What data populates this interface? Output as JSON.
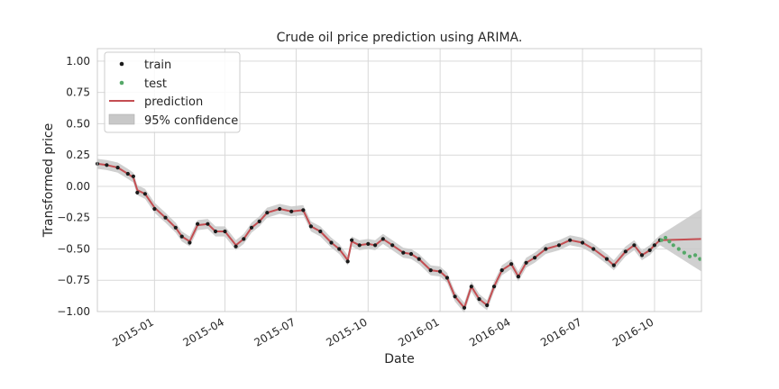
{
  "chart_data": {
    "type": "line",
    "title": "Crude oil price prediction using ARIMA.",
    "xlabel": "Date",
    "ylabel": "Transformed price",
    "ylim": [
      -1.0,
      1.1
    ],
    "xlim": [
      "2014-10-20",
      "2016-11-30"
    ],
    "yticks": [
      {
        "value": 1.0,
        "label": "1.00"
      },
      {
        "value": 0.75,
        "label": "0.75"
      },
      {
        "value": 0.5,
        "label": "0.50"
      },
      {
        "value": 0.25,
        "label": "0.25"
      },
      {
        "value": 0.0,
        "label": "0.00"
      },
      {
        "value": -0.25,
        "label": "−0.25"
      },
      {
        "value": -0.5,
        "label": "−0.50"
      },
      {
        "value": -0.75,
        "label": "−0.75"
      },
      {
        "value": -1.0,
        "label": "−1.00"
      }
    ],
    "xticks": [
      {
        "value": "2015-01-01",
        "label": "2015-01"
      },
      {
        "value": "2015-04-01",
        "label": "2015-04"
      },
      {
        "value": "2015-07-01",
        "label": "2015-07"
      },
      {
        "value": "2015-10-01",
        "label": "2015-10"
      },
      {
        "value": "2016-01-01",
        "label": "2016-01"
      },
      {
        "value": "2016-04-01",
        "label": "2016-04"
      },
      {
        "value": "2016-07-01",
        "label": "2016-07"
      },
      {
        "value": "2016-10-01",
        "label": "2016-10"
      }
    ],
    "grid": true,
    "legend_position": "top-left",
    "confidence_halfwidth": 0.04,
    "series": [
      {
        "name": "train",
        "kind": "scatter",
        "color": "#1a1a1a",
        "points": [
          [
            "2014-10-20",
            0.18
          ],
          [
            "2014-11-01",
            0.17
          ],
          [
            "2014-11-15",
            0.15
          ],
          [
            "2014-11-28",
            0.1
          ],
          [
            "2014-12-05",
            0.08
          ],
          [
            "2014-12-10",
            -0.05
          ],
          [
            "2014-12-20",
            -0.06
          ],
          [
            "2015-01-01",
            -0.18
          ],
          [
            "2015-01-15",
            -0.25
          ],
          [
            "2015-01-28",
            -0.33
          ],
          [
            "2015-02-05",
            -0.4
          ],
          [
            "2015-02-15",
            -0.45
          ],
          [
            "2015-02-25",
            -0.3
          ],
          [
            "2015-03-10",
            -0.3
          ],
          [
            "2015-03-20",
            -0.36
          ],
          [
            "2015-04-01",
            -0.36
          ],
          [
            "2015-04-15",
            -0.48
          ],
          [
            "2015-04-25",
            -0.42
          ],
          [
            "2015-05-05",
            -0.33
          ],
          [
            "2015-05-15",
            -0.28
          ],
          [
            "2015-05-25",
            -0.21
          ],
          [
            "2015-06-10",
            -0.18
          ],
          [
            "2015-06-25",
            -0.2
          ],
          [
            "2015-07-10",
            -0.19
          ],
          [
            "2015-07-20",
            -0.32
          ],
          [
            "2015-08-01",
            -0.36
          ],
          [
            "2015-08-15",
            -0.45
          ],
          [
            "2015-08-25",
            -0.5
          ],
          [
            "2015-09-05",
            -0.6
          ],
          [
            "2015-09-10",
            -0.43
          ],
          [
            "2015-09-20",
            -0.47
          ],
          [
            "2015-10-01",
            -0.46
          ],
          [
            "2015-10-10",
            -0.47
          ],
          [
            "2015-10-20",
            -0.42
          ],
          [
            "2015-11-01",
            -0.47
          ],
          [
            "2015-11-15",
            -0.53
          ],
          [
            "2015-11-25",
            -0.54
          ],
          [
            "2015-12-05",
            -0.58
          ],
          [
            "2015-12-20",
            -0.67
          ],
          [
            "2016-01-01",
            -0.68
          ],
          [
            "2016-01-10",
            -0.73
          ],
          [
            "2016-01-20",
            -0.88
          ],
          [
            "2016-02-01",
            -0.97
          ],
          [
            "2016-02-10",
            -0.8
          ],
          [
            "2016-02-20",
            -0.9
          ],
          [
            "2016-03-01",
            -0.95
          ],
          [
            "2016-03-10",
            -0.8
          ],
          [
            "2016-03-20",
            -0.67
          ],
          [
            "2016-04-01",
            -0.62
          ],
          [
            "2016-04-10",
            -0.72
          ],
          [
            "2016-04-20",
            -0.61
          ],
          [
            "2016-05-01",
            -0.57
          ],
          [
            "2016-05-15",
            -0.5
          ],
          [
            "2016-06-01",
            -0.47
          ],
          [
            "2016-06-15",
            -0.43
          ],
          [
            "2016-07-01",
            -0.45
          ],
          [
            "2016-07-15",
            -0.5
          ],
          [
            "2016-08-01",
            -0.58
          ],
          [
            "2016-08-10",
            -0.63
          ],
          [
            "2016-08-25",
            -0.52
          ],
          [
            "2016-09-05",
            -0.47
          ],
          [
            "2016-09-15",
            -0.55
          ],
          [
            "2016-09-25",
            -0.51
          ],
          [
            "2016-10-01",
            -0.47
          ],
          [
            "2016-10-08",
            -0.43
          ]
        ]
      },
      {
        "name": "test",
        "kind": "scatter",
        "color": "#55a868",
        "points": [
          [
            "2016-10-10",
            -0.43
          ],
          [
            "2016-10-15",
            -0.41
          ],
          [
            "2016-10-20",
            -0.44
          ],
          [
            "2016-10-25",
            -0.47
          ],
          [
            "2016-11-01",
            -0.5
          ],
          [
            "2016-11-08",
            -0.53
          ],
          [
            "2016-11-15",
            -0.56
          ],
          [
            "2016-11-22",
            -0.55
          ],
          [
            "2016-11-28",
            -0.58
          ]
        ]
      },
      {
        "name": "prediction",
        "kind": "line",
        "color": "#c44e52",
        "points": [
          [
            "2014-10-20",
            0.18
          ],
          [
            "2014-11-01",
            0.17
          ],
          [
            "2014-11-15",
            0.15
          ],
          [
            "2014-11-28",
            0.1
          ],
          [
            "2014-12-05",
            0.07
          ],
          [
            "2014-12-10",
            -0.03
          ],
          [
            "2014-12-20",
            -0.06
          ],
          [
            "2015-01-01",
            -0.17
          ],
          [
            "2015-01-15",
            -0.25
          ],
          [
            "2015-01-28",
            -0.33
          ],
          [
            "2015-02-05",
            -0.4
          ],
          [
            "2015-02-15",
            -0.44
          ],
          [
            "2015-02-25",
            -0.31
          ],
          [
            "2015-03-10",
            -0.3
          ],
          [
            "2015-03-20",
            -0.36
          ],
          [
            "2015-04-01",
            -0.36
          ],
          [
            "2015-04-15",
            -0.47
          ],
          [
            "2015-04-25",
            -0.42
          ],
          [
            "2015-05-05",
            -0.33
          ],
          [
            "2015-05-15",
            -0.28
          ],
          [
            "2015-05-25",
            -0.21
          ],
          [
            "2015-06-10",
            -0.18
          ],
          [
            "2015-06-25",
            -0.2
          ],
          [
            "2015-07-10",
            -0.19
          ],
          [
            "2015-07-20",
            -0.32
          ],
          [
            "2015-08-01",
            -0.36
          ],
          [
            "2015-08-15",
            -0.45
          ],
          [
            "2015-08-25",
            -0.5
          ],
          [
            "2015-09-05",
            -0.59
          ],
          [
            "2015-09-10",
            -0.44
          ],
          [
            "2015-09-20",
            -0.47
          ],
          [
            "2015-10-01",
            -0.46
          ],
          [
            "2015-10-10",
            -0.47
          ],
          [
            "2015-10-20",
            -0.42
          ],
          [
            "2015-11-01",
            -0.47
          ],
          [
            "2015-11-15",
            -0.53
          ],
          [
            "2015-11-25",
            -0.54
          ],
          [
            "2015-12-05",
            -0.58
          ],
          [
            "2015-12-20",
            -0.67
          ],
          [
            "2016-01-01",
            -0.68
          ],
          [
            "2016-01-10",
            -0.73
          ],
          [
            "2016-01-20",
            -0.88
          ],
          [
            "2016-02-01",
            -0.97
          ],
          [
            "2016-02-10",
            -0.8
          ],
          [
            "2016-02-20",
            -0.9
          ],
          [
            "2016-03-01",
            -0.95
          ],
          [
            "2016-03-10",
            -0.8
          ],
          [
            "2016-03-20",
            -0.67
          ],
          [
            "2016-04-01",
            -0.62
          ],
          [
            "2016-04-10",
            -0.72
          ],
          [
            "2016-04-20",
            -0.61
          ],
          [
            "2016-05-01",
            -0.57
          ],
          [
            "2016-05-15",
            -0.5
          ],
          [
            "2016-06-01",
            -0.47
          ],
          [
            "2016-06-15",
            -0.43
          ],
          [
            "2016-07-01",
            -0.45
          ],
          [
            "2016-07-15",
            -0.5
          ],
          [
            "2016-08-01",
            -0.58
          ],
          [
            "2016-08-10",
            -0.63
          ],
          [
            "2016-08-25",
            -0.52
          ],
          [
            "2016-09-05",
            -0.47
          ],
          [
            "2016-09-15",
            -0.55
          ],
          [
            "2016-09-25",
            -0.51
          ],
          [
            "2016-10-01",
            -0.47
          ],
          [
            "2016-10-08",
            -0.43
          ],
          [
            "2016-11-30",
            -0.42
          ]
        ]
      }
    ],
    "confidence_band": {
      "name": "95% confidence",
      "color": "#c8c8c8",
      "forecast_start": "2016-10-08",
      "forecast_end": "2016-11-30",
      "forecast_lower_end": -0.68,
      "forecast_upper_end": -0.18
    }
  }
}
